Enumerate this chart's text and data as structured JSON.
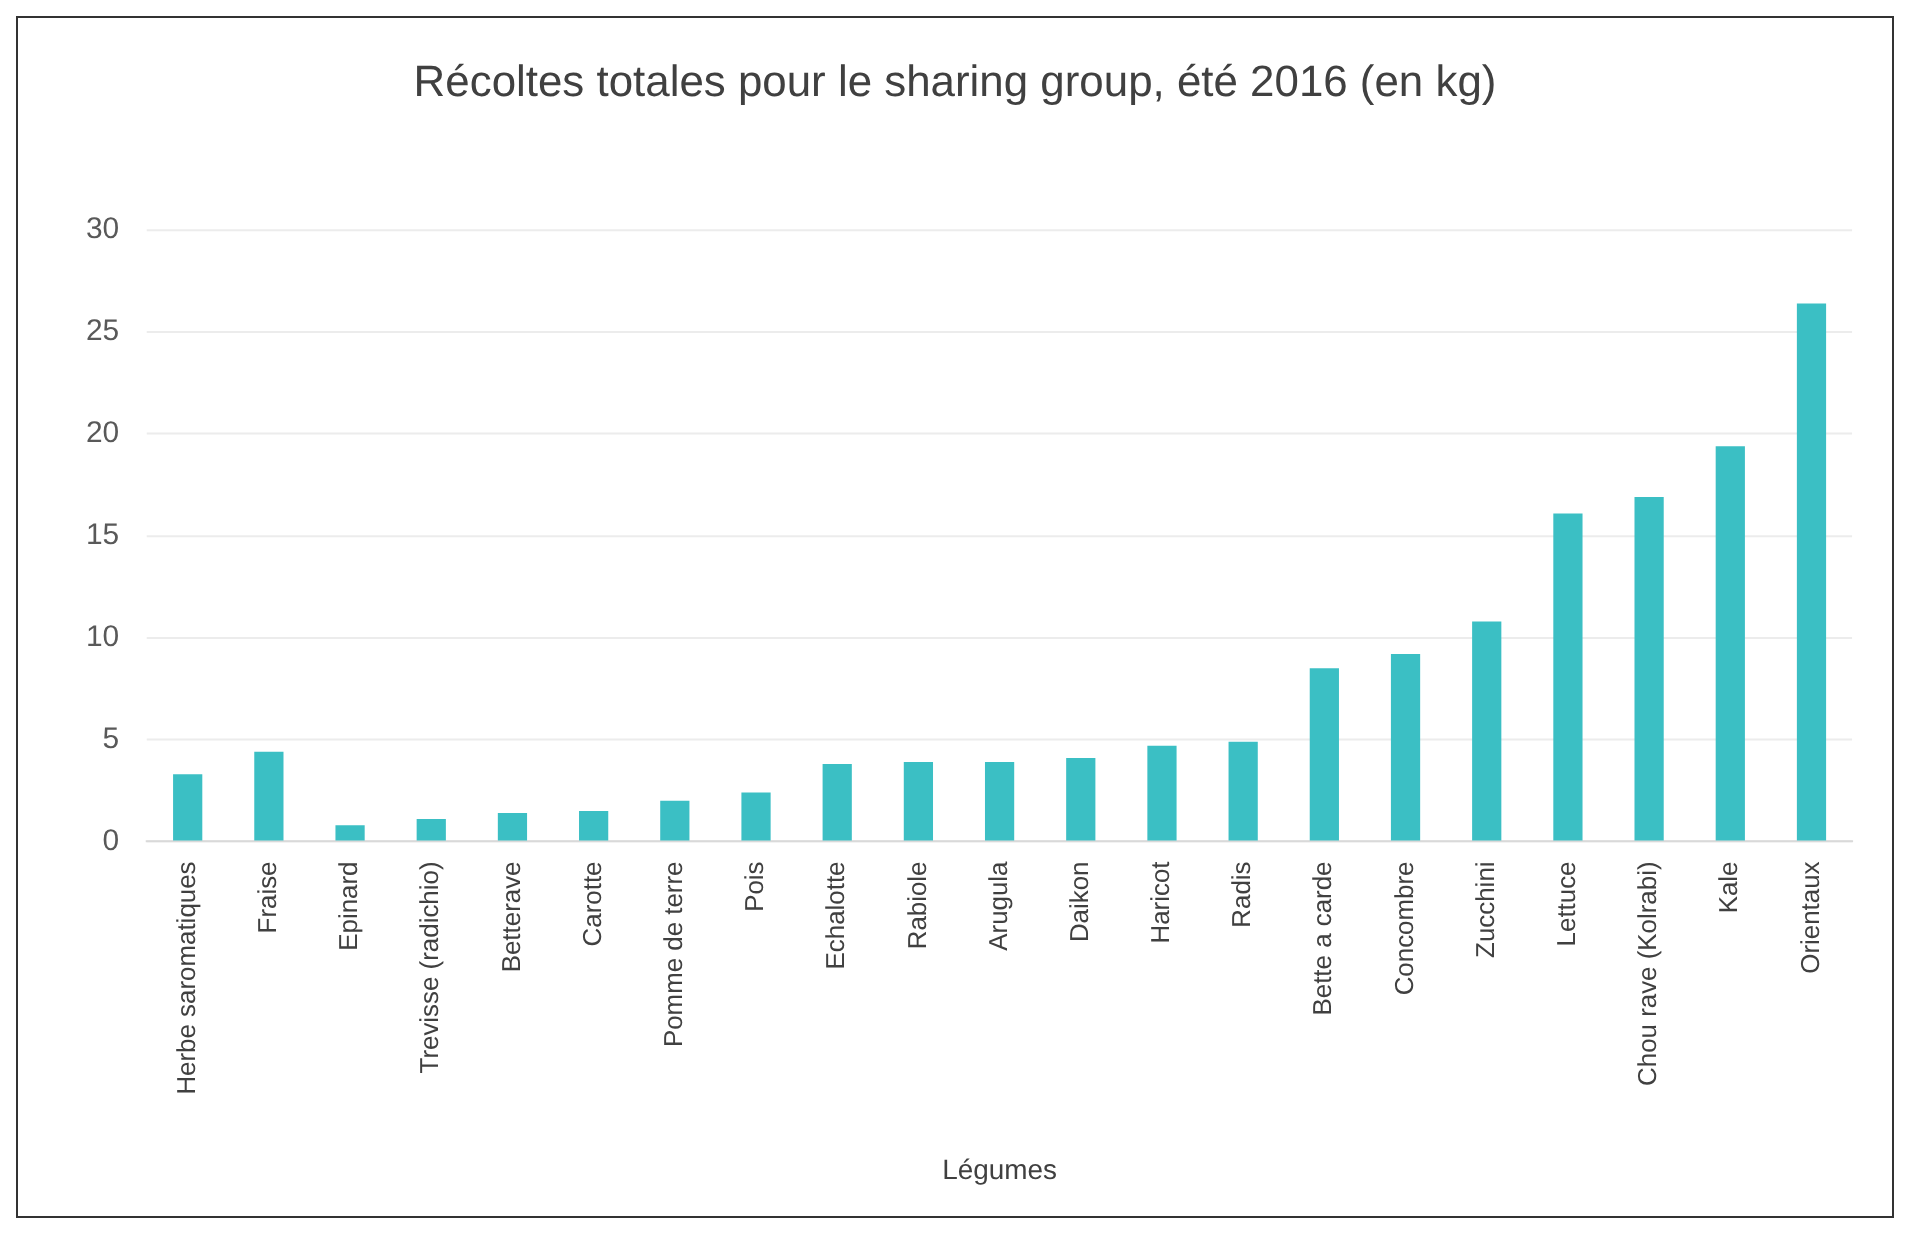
{
  "chart_data": {
    "type": "bar",
    "title": "Récoltes totales pour le sharing group, été 2016 (en kg)",
    "xlabel": "Légumes",
    "categories": [
      "Herbe saromatiques",
      "Fraise",
      "Epinard",
      "Trevisse (radichio)",
      "Betterave",
      "Carotte",
      "Pomme de terre",
      "Pois",
      "Echalotte",
      "Rabiole",
      "Arugula",
      "Daikon",
      "Haricot",
      "Radis",
      "Bette a carde",
      "Concombre",
      "Zucchini",
      "Lettuce",
      "Chou rave (Kolrabi)",
      "Kale",
      "Orientaux"
    ],
    "values": [
      3.3,
      4.4,
      0.8,
      1.1,
      1.4,
      1.5,
      2.0,
      2.4,
      3.8,
      3.9,
      3.9,
      4.1,
      4.7,
      4.9,
      8.5,
      9.2,
      10.8,
      16.1,
      16.9,
      19.4,
      26.4
    ],
    "color": "#3bbfc4",
    "ylim": [
      0,
      30
    ],
    "yticks": [
      0,
      5,
      10,
      15,
      20,
      25,
      30
    ],
    "grid": "y",
    "legend": false
  }
}
